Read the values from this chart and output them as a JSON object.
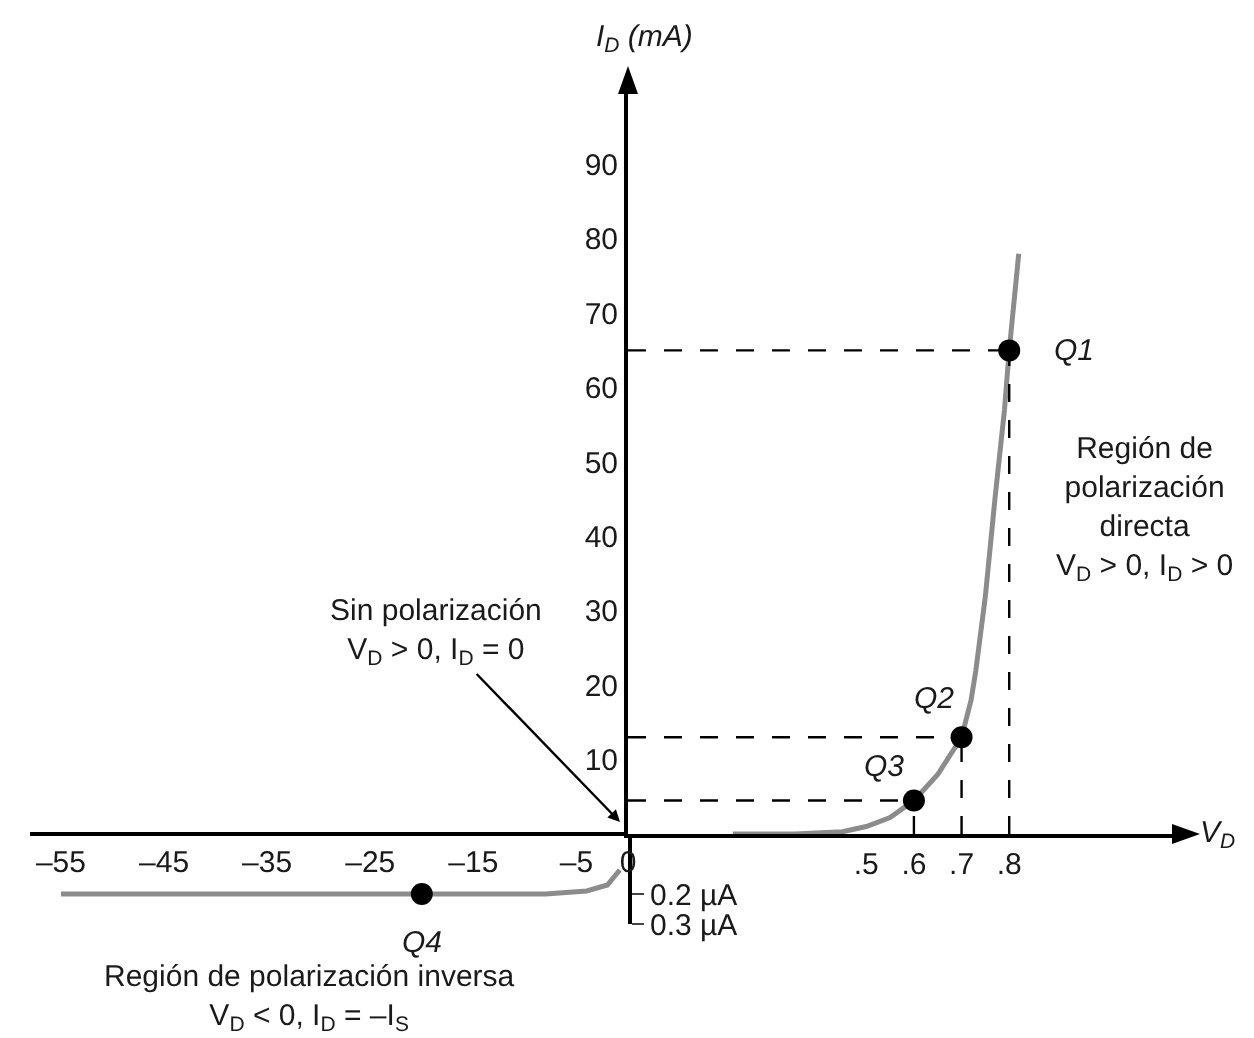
{
  "chart_data": [
    {
      "type": "line",
      "xlim": [
        -58,
        0
      ],
      "xticks": [
        {
          "value": -55,
          "label": "–55"
        },
        {
          "value": -45,
          "label": "–45"
        },
        {
          "value": -35,
          "label": "–35"
        },
        {
          "value": -25,
          "label": "–25"
        },
        {
          "value": -15,
          "label": "–15"
        },
        {
          "value": -5,
          "label": "–5"
        },
        0
      ],
      "ylim": [
        -0.3,
        0
      ],
      "yticks": [
        {
          "value": -0.2,
          "label": "0.2 µA"
        },
        {
          "value": -0.3,
          "label": "0.3 µA"
        }
      ],
      "series": [
        {
          "color": "#8c8c8c",
          "x": [
            -55,
            -40,
            -20,
            -8,
            -4,
            -2,
            -0.8
          ],
          "values": [
            -0.2,
            -0.2,
            -0.2,
            -0.2,
            -0.19,
            -0.17,
            -0.12
          ]
        },
        {
          "type": "scatter",
          "marker": "circle",
          "color": "#000000",
          "x": [
            -20
          ],
          "values": [
            -0.2
          ]
        }
      ],
      "annotations": [
        {
          "text": "Q4",
          "x": -20,
          "y": -0.2
        },
        "Región de polarización inversa\nV$_{D}$ < 0, I$_{D}$ = –I$_{S}$"
      ]
    },
    {
      "type": "line",
      "xlabel": "V$_{D}$",
      "ylabel": "I$_{D}$ (mA)",
      "xlim": [
        0,
        1.15
      ],
      "xticks": [
        {
          "value": 0.5,
          "label": ".5"
        },
        {
          "value": 0.6,
          "label": ".6"
        },
        {
          "value": 0.7,
          "label": ".7"
        },
        {
          "value": 0.8,
          "label": ".8"
        }
      ],
      "ylim": [
        0,
        100
      ],
      "yticks": [
        10,
        20,
        30,
        40,
        50,
        60,
        70,
        80,
        90
      ],
      "series": [
        {
          "color": "#8c8c8c",
          "x": [
            0.22,
            0.35,
            0.45,
            0.5,
            0.55,
            0.6,
            0.65,
            0.7,
            0.72,
            0.73,
            0.75,
            0.77,
            0.79,
            0.8,
            0.82
          ],
          "values": [
            0,
            0,
            0.3,
            1,
            2.2,
            4.5,
            8,
            13,
            18,
            22,
            32,
            45,
            57,
            65,
            78
          ]
        },
        {
          "type": "line",
          "line_style": "dashed",
          "color": "#000000",
          "x": [
            0,
            0.8
          ],
          "values": [
            65,
            65
          ]
        },
        {
          "type": "line",
          "line_style": "dashed",
          "color": "#000000",
          "x": [
            0.8,
            0.8
          ],
          "values": [
            0,
            65
          ]
        },
        {
          "type": "line",
          "line_style": "dashed",
          "color": "#000000",
          "x": [
            0,
            0.7
          ],
          "values": [
            13,
            13
          ]
        },
        {
          "type": "line",
          "line_style": "dashed",
          "color": "#000000",
          "x": [
            0.7,
            0.7
          ],
          "values": [
            0,
            13
          ]
        },
        {
          "type": "line",
          "line_style": "dashed",
          "color": "#000000",
          "x": [
            0,
            0.6
          ],
          "values": [
            4.5,
            4.5
          ]
        },
        {
          "type": "line",
          "line_style": "dashed",
          "color": "#000000",
          "x": [
            0.6,
            0.6
          ],
          "values": [
            0,
            4.5
          ]
        },
        {
          "type": "scatter",
          "marker": "circle",
          "color": "#000000",
          "x": [
            0.8,
            0.7,
            0.6
          ],
          "values": [
            65,
            13,
            4.5
          ]
        }
      ],
      "annotations": [
        {
          "text": "Q1",
          "x": 0.8,
          "y": 65
        },
        {
          "text": "Q2",
          "x": 0.7,
          "y": 13
        },
        {
          "text": "Q3",
          "x": 0.6,
          "y": 4.5
        },
        "Sin polarización\nV$_{D}$ > 0, I$_{D}$ = 0",
        "Región de\npolarización\ndirecta\nV$_{D}$ > 0, I$_{D}$ > 0"
      ]
    }
  ]
}
